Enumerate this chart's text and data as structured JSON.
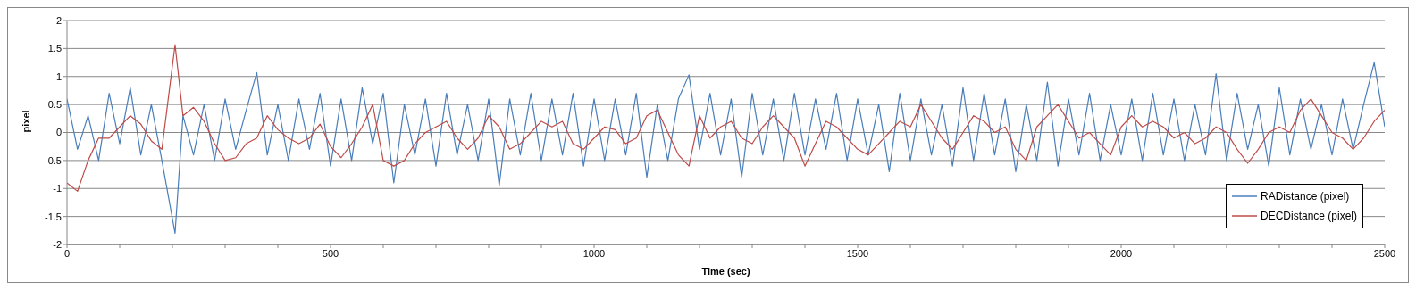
{
  "chart_data": {
    "type": "line",
    "xlabel": "Time (sec)",
    "ylabel": "pixel",
    "x": [
      0,
      20,
      40,
      60,
      80,
      100,
      120,
      140,
      160,
      180,
      205,
      220,
      240,
      260,
      280,
      300,
      320,
      340,
      360,
      380,
      400,
      420,
      440,
      460,
      480,
      500,
      520,
      540,
      560,
      580,
      600,
      620,
      640,
      660,
      680,
      700,
      720,
      740,
      760,
      780,
      800,
      820,
      840,
      860,
      880,
      900,
      920,
      940,
      960,
      980,
      1000,
      1020,
      1040,
      1060,
      1080,
      1100,
      1120,
      1140,
      1160,
      1180,
      1200,
      1220,
      1240,
      1260,
      1280,
      1300,
      1320,
      1340,
      1360,
      1380,
      1400,
      1420,
      1440,
      1460,
      1480,
      1500,
      1520,
      1540,
      1560,
      1580,
      1600,
      1620,
      1640,
      1660,
      1680,
      1700,
      1720,
      1740,
      1760,
      1780,
      1800,
      1820,
      1840,
      1860,
      1880,
      1900,
      1920,
      1940,
      1960,
      1980,
      2000,
      2020,
      2040,
      2060,
      2080,
      2100,
      2120,
      2140,
      2160,
      2180,
      2200,
      2220,
      2240,
      2260,
      2280,
      2300,
      2320,
      2340,
      2360,
      2380,
      2400,
      2420,
      2440,
      2460,
      2480,
      2500
    ],
    "series": [
      {
        "name": "RADistance (pixel)",
        "color": "#4a7ebb",
        "values": [
          0.6,
          -0.3,
          0.3,
          -0.5,
          0.7,
          -0.2,
          0.8,
          -0.4,
          0.5,
          -0.5,
          -1.8,
          0.3,
          -0.4,
          0.5,
          -0.5,
          0.6,
          -0.3,
          0.4,
          1.07,
          -0.4,
          0.5,
          -0.5,
          0.6,
          -0.3,
          0.7,
          -0.6,
          0.6,
          -0.5,
          0.8,
          -0.2,
          0.7,
          -0.9,
          0.5,
          -0.4,
          0.6,
          -0.6,
          0.7,
          -0.4,
          0.5,
          -0.5,
          0.6,
          -0.95,
          0.6,
          -0.4,
          0.7,
          -0.5,
          0.6,
          -0.4,
          0.7,
          -0.6,
          0.6,
          -0.5,
          0.6,
          -0.4,
          0.7,
          -0.8,
          0.5,
          -0.5,
          0.6,
          1.03,
          -0.3,
          0.7,
          -0.4,
          0.6,
          -0.8,
          0.7,
          -0.4,
          0.6,
          -0.5,
          0.7,
          -0.4,
          0.6,
          -0.3,
          0.7,
          -0.5,
          0.6,
          -0.4,
          0.5,
          -0.7,
          0.7,
          -0.5,
          0.6,
          -0.4,
          0.5,
          -0.6,
          0.8,
          -0.5,
          0.7,
          -0.4,
          0.6,
          -0.7,
          0.5,
          -0.5,
          0.9,
          -0.6,
          0.6,
          -0.4,
          0.7,
          -0.5,
          0.5,
          -0.4,
          0.6,
          -0.5,
          0.7,
          -0.4,
          0.6,
          -0.5,
          0.5,
          -0.4,
          1.05,
          -0.5,
          0.7,
          -0.3,
          0.5,
          -0.6,
          0.8,
          -0.4,
          0.6,
          -0.3,
          0.5,
          -0.4,
          0.6,
          -0.3,
          0.5,
          1.25,
          0.1
        ]
      },
      {
        "name": "DECDistance (pixel)",
        "color": "#be4b48",
        "values": [
          -0.9,
          -1.05,
          -0.5,
          -0.1,
          -0.1,
          0.1,
          0.3,
          0.15,
          -0.15,
          -0.3,
          1.57,
          0.3,
          0.45,
          0.2,
          -0.2,
          -0.5,
          -0.45,
          -0.2,
          -0.1,
          0.3,
          0.05,
          -0.1,
          -0.2,
          -0.1,
          0.15,
          -0.25,
          -0.45,
          -0.2,
          0.1,
          0.5,
          -0.5,
          -0.6,
          -0.5,
          -0.2,
          0,
          0.1,
          0.2,
          -0.1,
          -0.3,
          -0.1,
          0.3,
          0.1,
          -0.3,
          -0.2,
          0,
          0.2,
          0.1,
          0.2,
          -0.2,
          -0.3,
          -0.1,
          0.1,
          0.05,
          -0.2,
          -0.1,
          0.3,
          0.4,
          0,
          -0.4,
          -0.6,
          0.3,
          -0.1,
          0.1,
          0.2,
          -0.1,
          -0.2,
          0.1,
          0.3,
          0.1,
          -0.1,
          -0.6,
          -0.2,
          0.2,
          0.1,
          -0.1,
          -0.3,
          -0.4,
          -0.2,
          0,
          0.2,
          0.1,
          0.5,
          0.2,
          -0.1,
          -0.3,
          0,
          0.3,
          0.2,
          0,
          0.1,
          -0.3,
          -0.5,
          0.1,
          0.3,
          0.5,
          0.2,
          -0.1,
          0,
          -0.2,
          -0.4,
          0.1,
          0.3,
          0.1,
          0.2,
          0.1,
          -0.1,
          0,
          -0.2,
          -0.1,
          0.1,
          0,
          -0.3,
          -0.55,
          -0.3,
          0,
          0.1,
          0,
          0.4,
          0.6,
          0.3,
          0,
          -0.1,
          -0.3,
          -0.1,
          0.2,
          0.4
        ]
      }
    ],
    "xlim": [
      0,
      2500
    ],
    "xticks": [
      0,
      {
        "value": 100,
        "label": null
      },
      {
        "value": 200,
        "label": null
      },
      {
        "value": 300,
        "label": null
      },
      {
        "value": 400,
        "label": null
      },
      500,
      {
        "value": 600,
        "label": null
      },
      {
        "value": 700,
        "label": null
      },
      {
        "value": 800,
        "label": null
      },
      {
        "value": 900,
        "label": null
      },
      1000,
      {
        "value": 1100,
        "label": null
      },
      {
        "value": 1200,
        "label": null
      },
      {
        "value": 1300,
        "label": null
      },
      {
        "value": 1400,
        "label": null
      },
      1500,
      {
        "value": 1600,
        "label": null
      },
      {
        "value": 1700,
        "label": null
      },
      {
        "value": 1800,
        "label": null
      },
      {
        "value": 1900,
        "label": null
      },
      2000,
      {
        "value": 2100,
        "label": null
      },
      {
        "value": 2200,
        "label": null
      },
      {
        "value": 2300,
        "label": null
      },
      {
        "value": 2400,
        "label": null
      },
      2500
    ],
    "ylim": [
      -2,
      2
    ],
    "yticks": [
      -2,
      -1.5,
      -1,
      -0.5,
      0,
      0.5,
      1,
      1.5,
      2
    ],
    "grid": "y",
    "legend": "bottom right",
    "marker": "none",
    "line_style": "solid"
  }
}
